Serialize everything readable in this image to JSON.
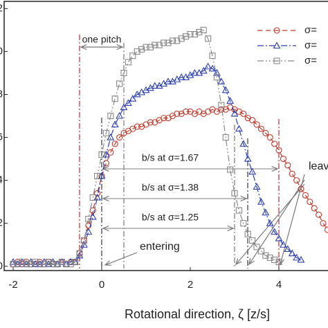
{
  "chart_data": {
    "type": "line",
    "x_label": "Rotational direction, ζ [z/s]",
    "xlim": [
      -2.2,
      5.1
    ],
    "ylim": [
      -0.02,
      1.23
    ],
    "xticks": [
      -2,
      0,
      2,
      4
    ],
    "yticks": [
      {
        "value": 1.2,
        "label": "2"
      },
      {
        "value": 1.0,
        "label": "0"
      },
      {
        "value": 0.8,
        "label": "8"
      },
      {
        "value": 0.6,
        "label": "6"
      },
      {
        "value": 0.4,
        "label": "4"
      },
      {
        "value": 0.2,
        "label": "2"
      },
      0
    ],
    "x": [
      -2.0,
      -1.9,
      -1.8,
      -1.7,
      -1.6,
      -1.5,
      -1.4,
      -1.3,
      -1.2,
      -1.1,
      -1.0,
      -0.9,
      -0.8,
      -0.7,
      -0.6,
      -0.5,
      -0.4,
      -0.3,
      -0.2,
      -0.1,
      0.0,
      0.1,
      0.2,
      0.3,
      0.4,
      0.5,
      0.6,
      0.7,
      0.8,
      0.9,
      1.0,
      1.1,
      1.2,
      1.3,
      1.4,
      1.5,
      1.6,
      1.7,
      1.8,
      1.9,
      2.0,
      2.1,
      2.2,
      2.3,
      2.4,
      2.5,
      2.6,
      2.7,
      2.8,
      2.9,
      3.0,
      3.1,
      3.2,
      3.3,
      3.4,
      3.5,
      3.6,
      3.7,
      3.8,
      3.9,
      4.0,
      4.1,
      4.2,
      4.3,
      4.4,
      4.5,
      4.6,
      4.7,
      4.8,
      4.9,
      5.0,
      5.1
    ],
    "series": [
      {
        "name": "σ=",
        "color": "#c0392b",
        "marker": "circle",
        "dash": "7 5",
        "values": [
          0.01,
          0.02,
          0.01,
          0.02,
          0.01,
          0.01,
          0.02,
          0.01,
          0.02,
          0.01,
          0.01,
          0.02,
          0.01,
          0.02,
          0.02,
          0.06,
          0.12,
          0.19,
          0.26,
          0.34,
          0.42,
          0.48,
          0.53,
          0.57,
          0.6,
          0.62,
          0.63,
          0.64,
          0.65,
          0.65,
          0.66,
          0.67,
          0.67,
          0.68,
          0.69,
          0.69,
          0.7,
          0.71,
          0.71,
          0.72,
          0.72,
          0.71,
          0.72,
          0.71,
          0.72,
          0.73,
          0.72,
          0.73,
          0.73,
          0.74,
          0.73,
          0.72,
          0.71,
          0.69,
          0.68,
          0.66,
          0.64,
          0.62,
          0.6,
          0.57,
          0.54,
          0.5,
          0.47,
          0.43,
          0.4,
          0.36,
          0.33,
          0.3,
          0.27,
          0.24,
          0.2,
          0.17
        ]
      },
      {
        "name": "σ=",
        "color": "#2a3fb0",
        "marker": "triangle",
        "dash": "9 3 2 3",
        "values": [
          0.02,
          0.01,
          0.02,
          0.01,
          0.02,
          0.01,
          0.01,
          0.02,
          0.01,
          0.02,
          0.01,
          0.02,
          0.01,
          0.02,
          0.02,
          0.05,
          0.1,
          0.16,
          0.23,
          0.32,
          0.42,
          0.52,
          0.6,
          0.66,
          0.7,
          0.74,
          0.76,
          0.78,
          0.8,
          0.81,
          0.82,
          0.83,
          0.84,
          0.84,
          0.85,
          0.86,
          0.86,
          0.87,
          0.88,
          0.88,
          0.89,
          0.9,
          0.9,
          0.91,
          0.93,
          0.92,
          0.9,
          0.86,
          0.82,
          0.77,
          0.71,
          0.64,
          0.57,
          0.5,
          0.44,
          0.37,
          0.3,
          0.25,
          0.2,
          0.16,
          0.13,
          0.1,
          0.08,
          0.06,
          0.04,
          0.03,
          null,
          null,
          null,
          null,
          null,
          null
        ]
      },
      {
        "name": "σ=",
        "color": "#888888",
        "marker": "square",
        "dash": "9 3 2 3 2 3",
        "values": [
          0.01,
          0.01,
          0.02,
          0.01,
          0.01,
          0.02,
          0.01,
          0.01,
          0.02,
          0.01,
          0.01,
          0.02,
          0.01,
          0.01,
          0.02,
          0.06,
          0.12,
          0.22,
          0.32,
          0.42,
          0.52,
          0.62,
          0.7,
          0.78,
          0.85,
          0.9,
          0.95,
          0.98,
          1.0,
          1.01,
          1.02,
          1.02,
          1.03,
          1.03,
          1.04,
          1.04,
          1.05,
          1.05,
          1.06,
          1.07,
          1.08,
          1.08,
          1.09,
          1.1,
          1.06,
          0.98,
          0.88,
          0.75,
          0.6,
          0.45,
          0.34,
          0.26,
          0.2,
          0.15,
          0.12,
          0.09,
          0.07,
          0.05,
          0.04,
          0.03,
          0.02,
          null,
          null,
          null,
          null,
          null,
          null,
          null,
          null,
          null,
          null,
          null
        ]
      }
    ],
    "annotations": [
      "one pitch",
      "b/s at σ=1.67",
      "b/s at σ=1.38",
      "b/s at σ=1.25",
      "entering",
      "leav"
    ]
  }
}
